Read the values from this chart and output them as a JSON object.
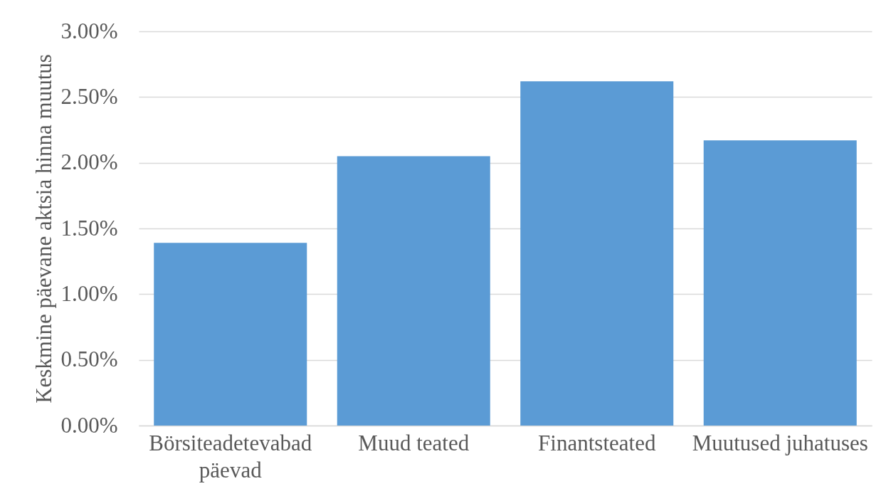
{
  "chart_data": {
    "type": "bar",
    "ylabel": "Keskmine päevane aktsia hinna muutus",
    "categories": [
      "Börsiteadetevabad päevad",
      "Muud teated",
      "Finantsteated",
      "Muutused juhatuses"
    ],
    "values": [
      1.39,
      2.05,
      2.62,
      2.17
    ],
    "color": "#5b9bd5",
    "ylim": [
      0,
      3
    ],
    "yticks": [
      {
        "value": 0,
        "label": "0.00%"
      },
      {
        "value": 0.5,
        "label": "0.50%"
      },
      {
        "value": 1,
        "label": "1.00%"
      },
      {
        "value": 1.5,
        "label": "1.50%"
      },
      {
        "value": 2,
        "label": "2.00%"
      },
      {
        "value": 2.5,
        "label": "2.50%"
      },
      {
        "value": 3,
        "label": "3.00%"
      }
    ],
    "grid": "y"
  }
}
